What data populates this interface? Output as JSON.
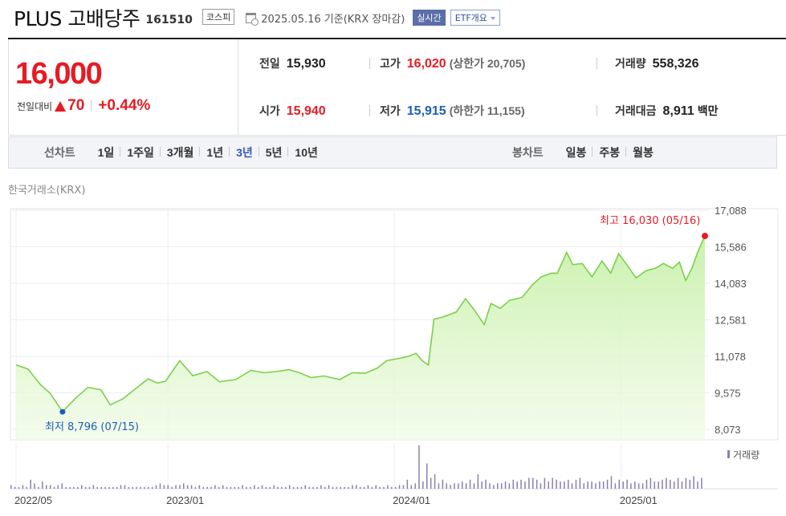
{
  "header": {
    "name": "PLUS 고배당주",
    "code": "161510",
    "market_badge": "코스피",
    "calendar_icon": "calendar-icon",
    "date_text": "2025.05.16  기준(KRX 장마감)",
    "live_badge": "실시간",
    "etf_button": "ETF개요"
  },
  "price": {
    "current": "16,000",
    "change_label": "전일대비",
    "change_direction": "up",
    "change_amount": "70",
    "change_pct": "+0.44%",
    "color_up": "#e61b23",
    "color_down": "#1d5fb4"
  },
  "info": {
    "prev_close_label": "전일",
    "prev_close": "15,930",
    "open_label": "시가",
    "open": "15,940",
    "high_label": "고가",
    "high": "16,020",
    "upper_limit": "(상한가 20,705)",
    "low_label": "저가",
    "low": "15,915",
    "lower_limit": "(하한가 11,155)",
    "volume_label": "거래량",
    "volume": "558,326",
    "turnover_label": "거래대금",
    "turnover": "8,911",
    "turnover_unit": "백만"
  },
  "period_bar": {
    "line_label": "선차트",
    "line_periods": [
      "1일",
      "1주일",
      "3개월",
      "1년",
      "3년",
      "5년",
      "10년"
    ],
    "active_period": "3년",
    "candle_label": "봉차트",
    "candle_periods": [
      "일봉",
      "주봉",
      "월봉"
    ]
  },
  "chart_data": {
    "type": "area",
    "market_label": "한국거래소(KRX)",
    "y_ticks": [
      "17,088",
      "15,586",
      "14,083",
      "12,581",
      "11,078",
      "9,575",
      "8,073"
    ],
    "ylim": [
      8073,
      17088
    ],
    "x_ticks": [
      "2022/05",
      "2023/01",
      "2024/01",
      "2025/01"
    ],
    "max_label": "최고 16,030 (05/16)",
    "min_label": "최저 8,796 (07/15)",
    "volume_legend": "거래량",
    "line_color": "#7ad04a",
    "fill_color": "#c8f0a8",
    "volume_color": "#8b7fb0",
    "max_marker_color": "#e61b23",
    "min_marker_color": "#1d5fb4",
    "series": [
      {
        "x": "2022-05-01",
        "y": 10720
      },
      {
        "x": "2022-05-20",
        "y": 10560
      },
      {
        "x": "2022-06-10",
        "y": 9900
      },
      {
        "x": "2022-06-25",
        "y": 9560
      },
      {
        "x": "2022-07-15",
        "y": 8796
      },
      {
        "x": "2022-08-05",
        "y": 9350
      },
      {
        "x": "2022-08-25",
        "y": 9800
      },
      {
        "x": "2022-09-15",
        "y": 9700
      },
      {
        "x": "2022-09-30",
        "y": 9080
      },
      {
        "x": "2022-10-20",
        "y": 9320
      },
      {
        "x": "2022-11-10",
        "y": 9750
      },
      {
        "x": "2022-11-30",
        "y": 10150
      },
      {
        "x": "2022-12-15",
        "y": 9980
      },
      {
        "x": "2022-12-28",
        "y": 10050
      },
      {
        "x": "2023-01-20",
        "y": 10900
      },
      {
        "x": "2023-02-10",
        "y": 10280
      },
      {
        "x": "2023-03-05",
        "y": 10450
      },
      {
        "x": "2023-03-25",
        "y": 10030
      },
      {
        "x": "2023-04-20",
        "y": 10120
      },
      {
        "x": "2023-05-15",
        "y": 10500
      },
      {
        "x": "2023-06-05",
        "y": 10400
      },
      {
        "x": "2023-06-25",
        "y": 10450
      },
      {
        "x": "2023-07-15",
        "y": 10530
      },
      {
        "x": "2023-08-01",
        "y": 10400
      },
      {
        "x": "2023-08-20",
        "y": 10200
      },
      {
        "x": "2023-09-10",
        "y": 10270
      },
      {
        "x": "2023-10-05",
        "y": 10120
      },
      {
        "x": "2023-10-25",
        "y": 10400
      },
      {
        "x": "2023-11-15",
        "y": 10380
      },
      {
        "x": "2023-12-05",
        "y": 10600
      },
      {
        "x": "2023-12-20",
        "y": 10900
      },
      {
        "x": "2024-01-10",
        "y": 11000
      },
      {
        "x": "2024-01-25",
        "y": 11080
      },
      {
        "x": "2024-02-05",
        "y": 11200
      },
      {
        "x": "2024-02-15",
        "y": 10900
      },
      {
        "x": "2024-02-25",
        "y": 10720
      },
      {
        "x": "2024-03-05",
        "y": 12600
      },
      {
        "x": "2024-03-20",
        "y": 12700
      },
      {
        "x": "2024-04-10",
        "y": 12900
      },
      {
        "x": "2024-04-25",
        "y": 13450
      },
      {
        "x": "2024-05-10",
        "y": 12950
      },
      {
        "x": "2024-05-25",
        "y": 12380
      },
      {
        "x": "2024-06-05",
        "y": 13250
      },
      {
        "x": "2024-06-20",
        "y": 13050
      },
      {
        "x": "2024-07-05",
        "y": 13380
      },
      {
        "x": "2024-07-25",
        "y": 13500
      },
      {
        "x": "2024-08-10",
        "y": 14000
      },
      {
        "x": "2024-08-25",
        "y": 14350
      },
      {
        "x": "2024-09-10",
        "y": 14500
      },
      {
        "x": "2024-09-20",
        "y": 14500
      },
      {
        "x": "2024-10-05",
        "y": 15350
      },
      {
        "x": "2024-10-15",
        "y": 14850
      },
      {
        "x": "2024-10-30",
        "y": 14900
      },
      {
        "x": "2024-11-15",
        "y": 14350
      },
      {
        "x": "2024-12-01",
        "y": 15000
      },
      {
        "x": "2024-12-15",
        "y": 14500
      },
      {
        "x": "2024-12-28",
        "y": 15300
      },
      {
        "x": "2025-01-10",
        "y": 14850
      },
      {
        "x": "2025-01-25",
        "y": 14300
      },
      {
        "x": "2025-02-10",
        "y": 14600
      },
      {
        "x": "2025-02-25",
        "y": 14700
      },
      {
        "x": "2025-03-10",
        "y": 14900
      },
      {
        "x": "2025-03-25",
        "y": 14700
      },
      {
        "x": "2025-04-05",
        "y": 14950
      },
      {
        "x": "2025-04-15",
        "y": 14200
      },
      {
        "x": "2025-04-25",
        "y": 14700
      },
      {
        "x": "2025-05-05",
        "y": 15400
      },
      {
        "x": "2025-05-16",
        "y": 16030
      }
    ],
    "volume_series": [
      2,
      1,
      1,
      2,
      1,
      5,
      3,
      1,
      4,
      2,
      2,
      1,
      2,
      3,
      1,
      1,
      1,
      1,
      2,
      1,
      1,
      2,
      1,
      1,
      1,
      1,
      1,
      1,
      2,
      2,
      1,
      1,
      1,
      1,
      1,
      1,
      1,
      2,
      3,
      2,
      2,
      1,
      2,
      2,
      3,
      2,
      2,
      1,
      2,
      1,
      1,
      1,
      2,
      1,
      2,
      1,
      1,
      1,
      1,
      2,
      1,
      1,
      2,
      1,
      2,
      1,
      1,
      2,
      1,
      1,
      1,
      2,
      1,
      1,
      1,
      2,
      1,
      1,
      1,
      2,
      1,
      2,
      1,
      1,
      1,
      1,
      1,
      2,
      2,
      1,
      1,
      2,
      1,
      2,
      1,
      1,
      2,
      1,
      1,
      2,
      2,
      5,
      2,
      3,
      24,
      4,
      14,
      6,
      8,
      3,
      5,
      3,
      2,
      3,
      3,
      4,
      3,
      5,
      3,
      8,
      4,
      5,
      3,
      2,
      3,
      3,
      4,
      3,
      5,
      4,
      5,
      4,
      6,
      6,
      5,
      3,
      6,
      4,
      6,
      5,
      4,
      4,
      5,
      3,
      5,
      6,
      3,
      4,
      4,
      3,
      4,
      4,
      5,
      7,
      3,
      5,
      4,
      5,
      3,
      4,
      3,
      3,
      5,
      6,
      4,
      4,
      5,
      6,
      5,
      4,
      6,
      4,
      6,
      5,
      7,
      4,
      6
    ]
  }
}
